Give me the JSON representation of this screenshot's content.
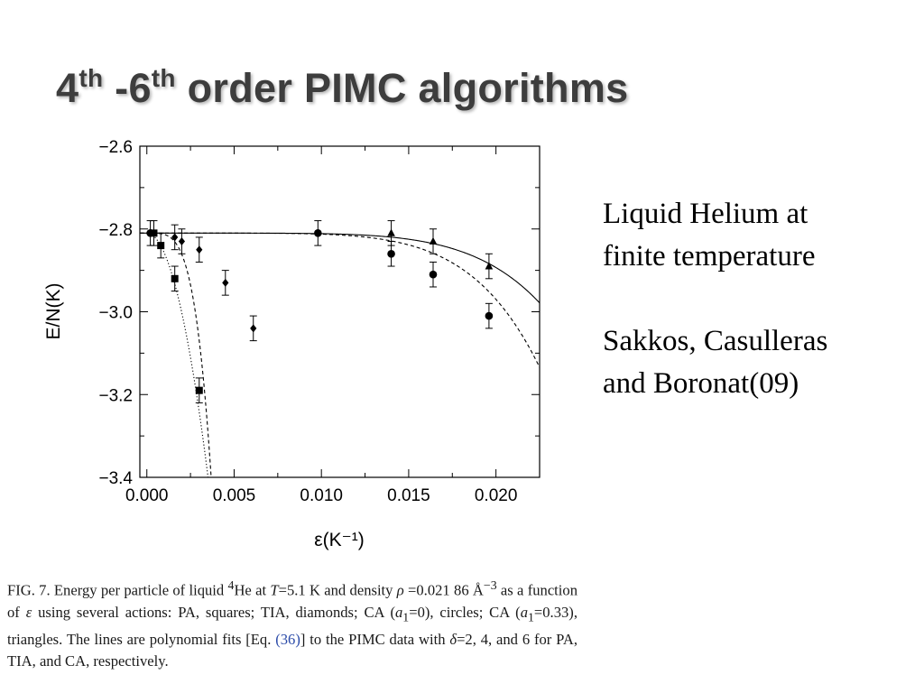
{
  "slide": {
    "title_parts": [
      "4",
      "th",
      " -6",
      "th",
      " order  PIMC algorithms"
    ],
    "side_lines": [
      "Liquid Helium at",
      "finite temperature",
      "Sakkos, Casulleras",
      "and Boronat(09)"
    ]
  },
  "caption": {
    "parts": [
      "FIG. 7. Energy per particle of liquid ",
      "4",
      "He at ",
      "T",
      "=5.1 K and density ",
      "ρ",
      " =0.021 86 Å",
      "−3",
      " as a function of ",
      "ε",
      " using several actions: PA, squares; TIA, diamonds; CA (",
      "a",
      "1",
      "=0), circles; CA (",
      "a",
      "1",
      "=0.33), triangles. The lines are polynomial fits [Eq. ",
      "(36)",
      "] to the PIMC data with ",
      "δ",
      "=2, 4, and 6 for PA, TIA, and CA, respectively."
    ]
  },
  "chart_data": {
    "type": "scatter",
    "xlabel": "ε(K⁻¹)",
    "ylabel": "E/N(K)",
    "xlim": [
      -0.0004,
      0.0225
    ],
    "ylim": [
      -3.4,
      -2.6
    ],
    "xticks": [
      0.0,
      0.005,
      0.01,
      0.015,
      0.02
    ],
    "xtick_labels": [
      "0.000",
      "0.005",
      "0.010",
      "0.015",
      "0.020"
    ],
    "yticks": [
      -2.6,
      -2.8,
      -3.0,
      -3.2,
      -3.4
    ],
    "ytick_labels": [
      "−2.6",
      "−2.8",
      "−3.0",
      "−3.2",
      "−3.4"
    ],
    "series": [
      {
        "marker": "square",
        "fit_style": "dotted",
        "x": [
          0.0004,
          0.0008,
          0.0016,
          0.003
        ],
        "y": [
          -2.81,
          -2.84,
          -2.92,
          -3.19
        ],
        "err": [
          0.03,
          0.03,
          0.03,
          0.03
        ]
      },
      {
        "marker": "diamond",
        "fit_style": "dashed",
        "x": [
          0.0016,
          0.002,
          0.003,
          0.0045,
          0.0061
        ],
        "y": [
          -2.82,
          -2.83,
          -2.85,
          -2.93,
          -3.04
        ],
        "err": [
          0.03,
          0.03,
          0.03,
          0.03,
          0.03
        ]
      },
      {
        "marker": "circle",
        "fit_style": "dashed",
        "x": [
          0.0002,
          0.0098,
          0.014,
          0.0164,
          0.0196
        ],
        "y": [
          -2.81,
          -2.81,
          -2.86,
          -2.91,
          -3.01
        ],
        "err": [
          0.03,
          0.03,
          0.03,
          0.03,
          0.03
        ]
      },
      {
        "marker": "triangle",
        "fit_style": "solid",
        "x": [
          0.014,
          0.0164,
          0.0196
        ],
        "y": [
          -2.81,
          -2.83,
          -2.89
        ],
        "err": [
          0.03,
          0.03,
          0.03
        ]
      }
    ],
    "fits": [
      {
        "style": "dotted",
        "e0": -2.81,
        "c": 48000,
        "p": 2
      },
      {
        "style": "dashed",
        "e0": -2.81,
        "c": 3200000000.0,
        "p": 4
      },
      {
        "style": "dashed",
        "e0": -2.81,
        "c": 2500000000.0,
        "p": 6
      },
      {
        "style": "solid",
        "e0": -2.81,
        "c": 1300000000.0,
        "p": 6
      }
    ]
  }
}
